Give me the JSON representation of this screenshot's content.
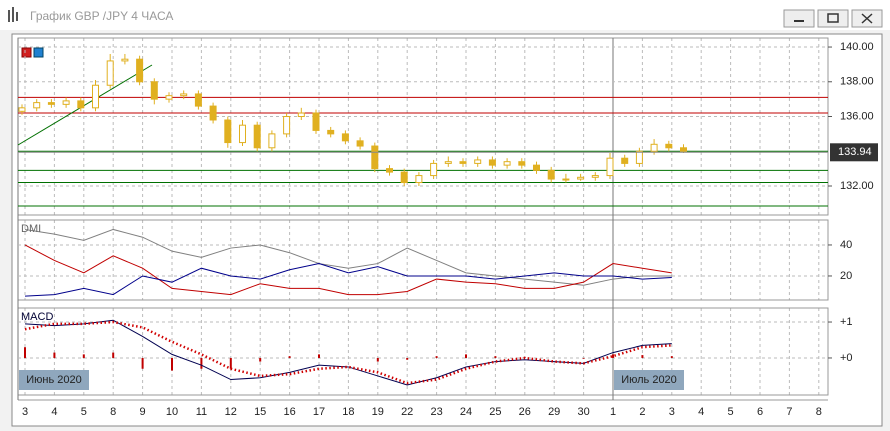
{
  "window": {
    "title": "График GBP /JPY  4 ЧАСА"
  },
  "x_axis": {
    "labels": [
      "3",
      "4",
      "5",
      "8",
      "9",
      "10",
      "11",
      "12",
      "15",
      "16",
      "17",
      "18",
      "19",
      "22",
      "23",
      "24",
      "25",
      "26",
      "29",
      "30",
      "1",
      "2",
      "3",
      "4",
      "5",
      "6",
      "7",
      "8"
    ],
    "period_labels": [
      "Июнь 2020",
      "Июль 2020"
    ]
  },
  "chart_data": [
    {
      "type": "candlestick",
      "color": "#e0b020",
      "candles": [
        [
          136.3,
          136.7,
          136.1,
          136.5
        ],
        [
          136.5,
          137.0,
          136.3,
          136.8
        ],
        [
          136.8,
          137.0,
          136.5,
          136.7
        ],
        [
          136.7,
          137.1,
          136.5,
          136.9
        ],
        [
          136.9,
          137.1,
          136.3,
          136.5
        ],
        [
          136.5,
          138.1,
          136.3,
          137.8
        ],
        [
          137.8,
          139.6,
          137.6,
          139.2
        ],
        [
          139.2,
          139.6,
          139.0,
          139.3
        ],
        [
          139.3,
          139.5,
          137.8,
          138.0
        ],
        [
          138.0,
          138.2,
          136.7,
          137.0
        ],
        [
          137.0,
          137.4,
          136.8,
          137.2
        ],
        [
          137.2,
          137.5,
          137.0,
          137.3
        ],
        [
          137.3,
          137.5,
          136.4,
          136.6
        ],
        [
          136.6,
          136.8,
          135.6,
          135.8
        ],
        [
          135.8,
          136.0,
          134.2,
          134.5
        ],
        [
          134.5,
          135.8,
          134.3,
          135.5
        ],
        [
          135.5,
          135.7,
          134.0,
          134.2
        ],
        [
          134.2,
          135.2,
          134.0,
          135.0
        ],
        [
          135.0,
          136.2,
          134.8,
          136.0
        ],
        [
          136.0,
          136.5,
          135.8,
          136.2
        ],
        [
          136.2,
          136.4,
          135.0,
          135.2
        ],
        [
          135.2,
          135.4,
          134.8,
          135.0
        ],
        [
          135.0,
          135.2,
          134.4,
          134.6
        ],
        [
          134.6,
          134.8,
          134.1,
          134.3
        ],
        [
          134.3,
          134.5,
          132.8,
          133.0
        ],
        [
          133.0,
          133.2,
          132.6,
          132.8
        ],
        [
          132.8,
          133.0,
          132.0,
          132.2
        ],
        [
          132.2,
          132.8,
          132.0,
          132.6
        ],
        [
          132.6,
          133.5,
          132.4,
          133.3
        ],
        [
          133.3,
          133.7,
          133.1,
          133.4
        ],
        [
          133.4,
          133.6,
          133.1,
          133.3
        ],
        [
          133.3,
          133.7,
          133.1,
          133.5
        ],
        [
          133.5,
          133.7,
          133.0,
          133.2
        ],
        [
          133.2,
          133.6,
          133.0,
          133.4
        ],
        [
          133.4,
          133.6,
          133.0,
          133.2
        ],
        [
          133.2,
          133.4,
          132.7,
          132.9
        ],
        [
          132.9,
          133.1,
          132.2,
          132.4
        ],
        [
          132.4,
          132.7,
          132.2,
          132.4
        ],
        [
          132.4,
          132.7,
          132.3,
          132.5
        ],
        [
          132.5,
          132.8,
          132.3,
          132.6
        ],
        [
          132.6,
          133.9,
          132.4,
          133.6
        ],
        [
          133.6,
          133.8,
          133.1,
          133.3
        ],
        [
          133.3,
          134.2,
          133.1,
          134.0
        ],
        [
          134.0,
          134.7,
          133.8,
          134.4
        ],
        [
          134.4,
          134.6,
          134.0,
          134.2
        ],
        [
          134.2,
          134.4,
          133.9,
          134.0
        ]
      ],
      "ylim": [
        130.33,
        140.52
      ],
      "yticks": [
        {
          "value": 140,
          "label": "140.00"
        },
        {
          "value": 138,
          "label": "138.00"
        },
        {
          "value": 136,
          "label": "136.00"
        },
        {
          "value": 132,
          "label": "132.00"
        }
      ],
      "last_price": {
        "value": 133.94,
        "label": "133.94"
      },
      "levels": [
        {
          "value": 137.1,
          "color": "#c00000"
        },
        {
          "value": 136.2,
          "color": "#c00000"
        },
        {
          "value": 134.0,
          "color": "#007000"
        },
        {
          "value": 132.9,
          "color": "#007000"
        },
        {
          "value": 132.2,
          "color": "#007000"
        },
        {
          "value": 130.85,
          "color": "#007000"
        }
      ]
    },
    {
      "type": "line",
      "title": "DMI",
      "ylim": [
        4.5,
        56.1
      ],
      "yticks": [
        40,
        20
      ],
      "series": [
        {
          "color": "#808080",
          "values": [
            50,
            47,
            43,
            50,
            45,
            36,
            32,
            38,
            40,
            35,
            28,
            25,
            28,
            38,
            30,
            22,
            20,
            18,
            16,
            14,
            18,
            20,
            20
          ]
        },
        {
          "color": "#c00000",
          "values": [
            40,
            30,
            22,
            33,
            25,
            12,
            10,
            8,
            15,
            12,
            12,
            8,
            8,
            10,
            18,
            16,
            15,
            12,
            12,
            16,
            28,
            25,
            22
          ]
        },
        {
          "color": "#00008b",
          "values": [
            7,
            8,
            12,
            8,
            20,
            16,
            25,
            20,
            18,
            24,
            28,
            22,
            26,
            20,
            20,
            20,
            18,
            20,
            22,
            20,
            20,
            18,
            19
          ]
        }
      ]
    },
    {
      "type": "macd",
      "title": "MACD",
      "ylim": [
        -1.03,
        1.39
      ],
      "yticks": [
        {
          "value": 1,
          "label": "+1"
        },
        {
          "value": 0,
          "label": "+0"
        }
      ],
      "series": [
        {
          "color": "#000050",
          "values": [
            0.95,
            0.9,
            0.95,
            1.05,
            0.6,
            0.1,
            -0.2,
            -0.6,
            -0.55,
            -0.4,
            -0.2,
            -0.25,
            -0.5,
            -0.75,
            -0.55,
            -0.25,
            -0.1,
            -0.05,
            -0.1,
            -0.15,
            0.15,
            0.35,
            0.4
          ]
        },
        {
          "color": "#d00000",
          "values": [
            0.8,
            0.95,
            0.95,
            1.0,
            0.85,
            0.45,
            0.1,
            -0.3,
            -0.5,
            -0.45,
            -0.3,
            -0.25,
            -0.4,
            -0.7,
            -0.6,
            -0.3,
            -0.1,
            0,
            -0.1,
            -0.15,
            0.05,
            0.3,
            0.35
          ]
        }
      ],
      "histogram": {
        "color": "#c00000",
        "values": [
          0.3,
          0.15,
          0.1,
          0.15,
          -0.3,
          -0.35,
          -0.3,
          -0.3,
          -0.1,
          0.05,
          0.1,
          0,
          -0.1,
          -0.05,
          0.05,
          0.1,
          0.05,
          0.02,
          0,
          -0.02,
          0.1,
          0.08,
          0.05
        ]
      }
    }
  ]
}
